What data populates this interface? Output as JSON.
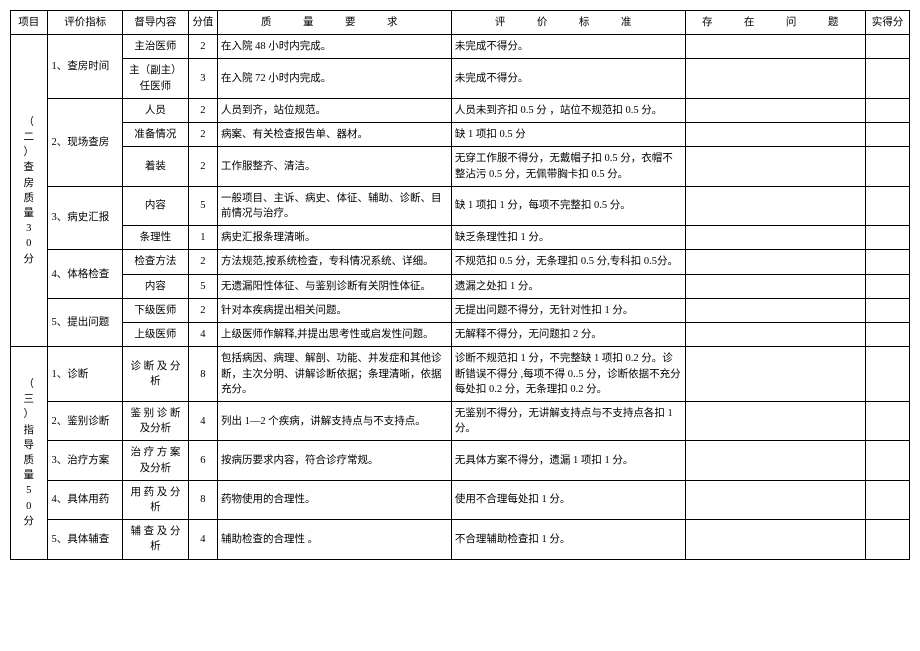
{
  "colors": {
    "border": "#000000",
    "bg": "#ffffff",
    "text": "#000000"
  },
  "font": {
    "family": "SimSun",
    "size_pt": 10.5
  },
  "headers": {
    "project": "项目",
    "indicator": "评价指标",
    "supervise": "督导内容",
    "score": "分值",
    "requirement": "质　量　要　求",
    "standard": "评　价　标　准",
    "problems": "存　在　问　题",
    "actual": "实得分"
  },
  "section2": {
    "title": "（二）查房质量30分",
    "groups": [
      {
        "indicator": "1、查房时间",
        "rows": [
          {
            "dd": "主治医师",
            "fz": "2",
            "req": "在入院 48 小时内完成。",
            "std": "未完成不得分。"
          },
          {
            "dd": "主（副主）任医师",
            "fz": "3",
            "req": "在入院 72 小时内完成。",
            "std": "未完成不得分。"
          }
        ]
      },
      {
        "indicator": "2、现场查房",
        "rows": [
          {
            "dd": "人员",
            "fz": "2",
            "req": "人员到齐，站位规范。",
            "std": "人员未到齐扣 0.5 分 ，站位不规范扣 0.5 分。"
          },
          {
            "dd": "准备情况",
            "fz": "2",
            "req": "病案、有关检查报告单、器材。",
            "std": "缺 1 项扣 0.5 分"
          },
          {
            "dd": "着装",
            "fz": "2",
            "req": "工作服整齐、清洁。",
            "std": "无穿工作服不得分，无戴帽子扣 0.5 分，衣帽不整沾污 0.5 分，无佩带胸卡扣 0.5 分。"
          }
        ]
      },
      {
        "indicator": "3、病史汇报",
        "rows": [
          {
            "dd": "内容",
            "fz": "5",
            "req": " 一般项目、主诉、病史、体征、辅助、诊断、目前情况与治疗。",
            "std": "缺 1 项扣 1 分，每项不完整扣 0.5 分。"
          },
          {
            "dd": "条理性",
            "fz": "1",
            "req": "病史汇报条理清晰。",
            "std": "缺乏条理性扣 1 分。"
          }
        ]
      },
      {
        "indicator": "4、体格检查",
        "rows": [
          {
            "dd": "检查方法",
            "fz": "2",
            "req": "方法规范,按系统检查，专科情况系统、详细。",
            "std": "不规范扣 0.5 分，无条理扣 0.5 分,专科扣 0.5分。"
          },
          {
            "dd": "内容",
            "fz": "5",
            "req": "无遗漏阳性体征、与鉴别诊断有关阴性体征。",
            "std": "遗漏之处扣 1 分。"
          }
        ]
      },
      {
        "indicator": "5、提出问题",
        "rows": [
          {
            "dd": "下级医师",
            "fz": "2",
            "req": "针对本疾病提出相关问题。",
            "std": "无提出问题不得分，无针对性扣 1 分。"
          },
          {
            "dd": "上级医师",
            "fz": "4",
            "req": "上级医师作解释,并提出思考性或启发性问题。",
            "std": "无解释不得分，无问题扣 2 分。"
          }
        ]
      }
    ]
  },
  "section3": {
    "title": "（三）指导质量50分",
    "groups": [
      {
        "indicator": "1、诊断",
        "rows": [
          {
            "dd": "诊 断 及 分析",
            "fz": "8",
            "req": "包括病因、病理、解剖、功能、并发症和其他诊断，主次分明、讲解诊断依据；条理清晰，依据充分。",
            "std": "诊断不规范扣 1 分，不完整缺 1 项扣 0.2 分。诊断错误不得分 ,每项不得 0..5 分，诊断依据不充分每处扣 0.2 分，无条理扣 0.2 分。"
          }
        ]
      },
      {
        "indicator": "2、鉴别诊断",
        "rows": [
          {
            "dd": "鉴 别 诊 断及分析",
            "fz": "4",
            "req": "列出 1—2 个疾病，讲解支持点与不支持点。",
            "std": "无鉴别不得分，无讲解支持点与不支持点各扣 1分。"
          }
        ]
      },
      {
        "indicator": "3、治疗方案",
        "rows": [
          {
            "dd": "治 疗 方 案及分析",
            "fz": "6",
            "req": "按病历要求内容，符合诊疗常规。",
            "std": "无具体方案不得分，遗漏 1 项扣 1 分。"
          }
        ]
      },
      {
        "indicator": "4、具体用药",
        "rows": [
          {
            "dd": "用 药 及 分析",
            "fz": "8",
            "req": "药物使用的合理性。",
            "std": "使用不合理每处扣 1 分。"
          }
        ]
      },
      {
        "indicator": "5、具体辅查",
        "rows": [
          {
            "dd": "辅 查 及 分析",
            "fz": "4",
            "req": "辅助检查的合理性 。",
            "std": "不合理辅助检查扣 1 分。"
          }
        ]
      }
    ]
  }
}
